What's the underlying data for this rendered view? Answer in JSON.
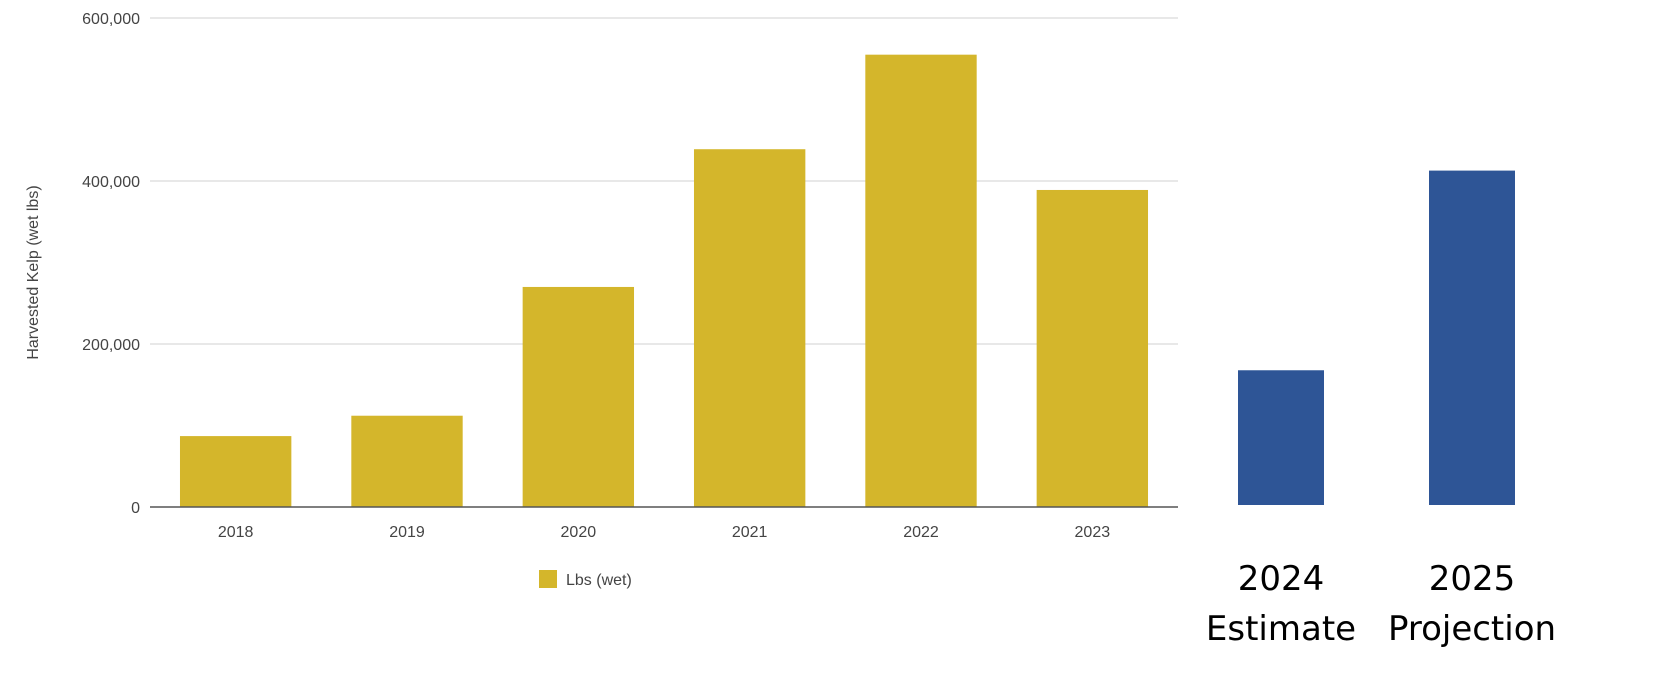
{
  "chart_data": [
    {
      "type": "bar",
      "categories": [
        "2018",
        "2019",
        "2020",
        "2021",
        "2022",
        "2023"
      ],
      "series": [
        {
          "name": "Lbs (wet)",
          "values": [
            87000,
            112000,
            270000,
            439000,
            555000,
            389000
          ],
          "color": "#d4b62b"
        }
      ],
      "title": "",
      "xlabel": "",
      "ylabel": "Harvested Kelp (wet lbs)",
      "ylim": [
        0,
        600000
      ],
      "yticks": [
        0,
        200000,
        400000,
        600000
      ],
      "ytick_labels": [
        "0",
        "200,000",
        "400,000",
        "600,000"
      ],
      "grid": true,
      "legend": "bottom"
    },
    {
      "type": "bar",
      "categories": [
        "2024 Estimate",
        "2025 Projection"
      ],
      "category_lines": [
        [
          "2024",
          "Estimate"
        ],
        [
          "2025",
          "Projection"
        ]
      ],
      "series": [
        {
          "values": [
            166000,
            412000
          ],
          "color": "#2e5596"
        }
      ],
      "ylim": [
        0,
        600000
      ],
      "grid": false
    }
  ]
}
